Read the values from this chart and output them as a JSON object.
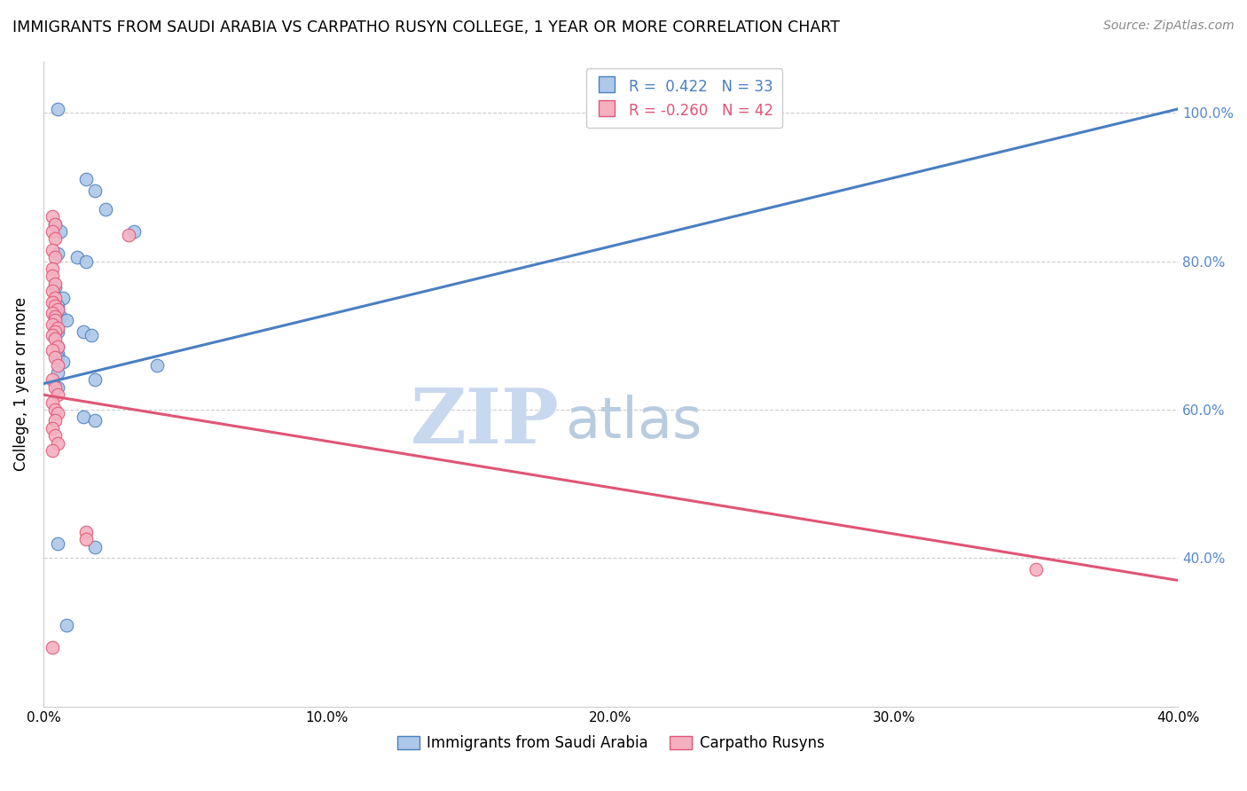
{
  "title": "IMMIGRANTS FROM SAUDI ARABIA VS CARPATHO RUSYN COLLEGE, 1 YEAR OR MORE CORRELATION CHART",
  "source": "Source: ZipAtlas.com",
  "ylabel": "College, 1 year or more",
  "legend_label_blue": "Immigrants from Saudi Arabia",
  "legend_label_pink": "Carpatho Rusyns",
  "blue_color": "#adc8e8",
  "pink_color": "#f5b0c0",
  "blue_line_color": "#4a7fc1",
  "pink_line_color": "#e05575",
  "blue_R": 0.422,
  "blue_N": 33,
  "pink_R": -0.26,
  "pink_N": 42,
  "xlim": [
    0.0,
    40.0
  ],
  "ylim": [
    20.0,
    107.0
  ],
  "blue_scatter": [
    [
      0.5,
      100.5
    ],
    [
      1.5,
      91.0
    ],
    [
      1.8,
      89.5
    ],
    [
      2.2,
      87.0
    ],
    [
      0.4,
      85.0
    ],
    [
      0.6,
      84.0
    ],
    [
      3.2,
      84.0
    ],
    [
      0.5,
      81.0
    ],
    [
      1.2,
      80.5
    ],
    [
      1.5,
      80.0
    ],
    [
      0.4,
      76.5
    ],
    [
      0.7,
      75.0
    ],
    [
      0.5,
      74.0
    ],
    [
      0.5,
      73.5
    ],
    [
      0.6,
      72.5
    ],
    [
      0.8,
      72.0
    ],
    [
      0.4,
      71.0
    ],
    [
      0.5,
      70.5
    ],
    [
      1.4,
      70.5
    ],
    [
      1.7,
      70.0
    ],
    [
      0.5,
      68.5
    ],
    [
      0.5,
      67.5
    ],
    [
      0.5,
      67.0
    ],
    [
      0.7,
      66.5
    ],
    [
      4.0,
      66.0
    ],
    [
      0.5,
      65.0
    ],
    [
      1.8,
      64.0
    ],
    [
      0.5,
      63.0
    ],
    [
      1.4,
      59.0
    ],
    [
      1.8,
      58.5
    ],
    [
      0.5,
      42.0
    ],
    [
      1.8,
      41.5
    ],
    [
      0.8,
      31.0
    ]
  ],
  "pink_scatter": [
    [
      0.3,
      86.0
    ],
    [
      0.4,
      85.0
    ],
    [
      0.3,
      84.0
    ],
    [
      0.4,
      83.0
    ],
    [
      3.0,
      83.5
    ],
    [
      0.3,
      81.5
    ],
    [
      0.4,
      80.5
    ],
    [
      0.3,
      79.0
    ],
    [
      0.3,
      78.0
    ],
    [
      0.4,
      77.0
    ],
    [
      0.3,
      76.0
    ],
    [
      0.4,
      75.0
    ],
    [
      0.3,
      74.5
    ],
    [
      0.4,
      74.0
    ],
    [
      0.5,
      73.5
    ],
    [
      0.3,
      73.0
    ],
    [
      0.4,
      72.5
    ],
    [
      0.4,
      72.0
    ],
    [
      0.3,
      71.5
    ],
    [
      0.5,
      71.0
    ],
    [
      0.4,
      70.5
    ],
    [
      0.3,
      70.0
    ],
    [
      0.4,
      69.5
    ],
    [
      0.5,
      68.5
    ],
    [
      0.3,
      68.0
    ],
    [
      0.4,
      67.0
    ],
    [
      0.5,
      66.0
    ],
    [
      0.3,
      64.0
    ],
    [
      0.4,
      63.0
    ],
    [
      0.5,
      62.0
    ],
    [
      0.3,
      61.0
    ],
    [
      0.4,
      60.0
    ],
    [
      0.5,
      59.5
    ],
    [
      0.4,
      58.5
    ],
    [
      0.3,
      57.5
    ],
    [
      0.4,
      56.5
    ],
    [
      0.5,
      55.5
    ],
    [
      0.3,
      54.5
    ],
    [
      1.5,
      43.5
    ],
    [
      1.5,
      42.5
    ],
    [
      35.0,
      38.5
    ],
    [
      0.3,
      28.0
    ]
  ],
  "blue_trendline_x": [
    0.0,
    40.0
  ],
  "blue_trendline_y": [
    63.5,
    100.5
  ],
  "pink_trendline_x": [
    0.0,
    40.0
  ],
  "pink_trendline_y": [
    62.0,
    37.0
  ],
  "watermark_zip": "ZIP",
  "watermark_atlas": "atlas",
  "watermark_color_zip": "#c8d8ee",
  "watermark_color_atlas": "#b8cce0",
  "grid_color": "#cccccc",
  "background_color": "#ffffff",
  "right_tick_color": "#5588cc",
  "x_tick_labels": [
    "0.0%",
    "10.0%",
    "20.0%",
    "30.0%",
    "40.0%"
  ],
  "x_tick_values": [
    0,
    10,
    20,
    30,
    40
  ],
  "y_tick_values": [
    40,
    60,
    80,
    100
  ],
  "y_tick_labels": [
    "40.0%",
    "60.0%",
    "80.0%",
    "100.0%"
  ]
}
